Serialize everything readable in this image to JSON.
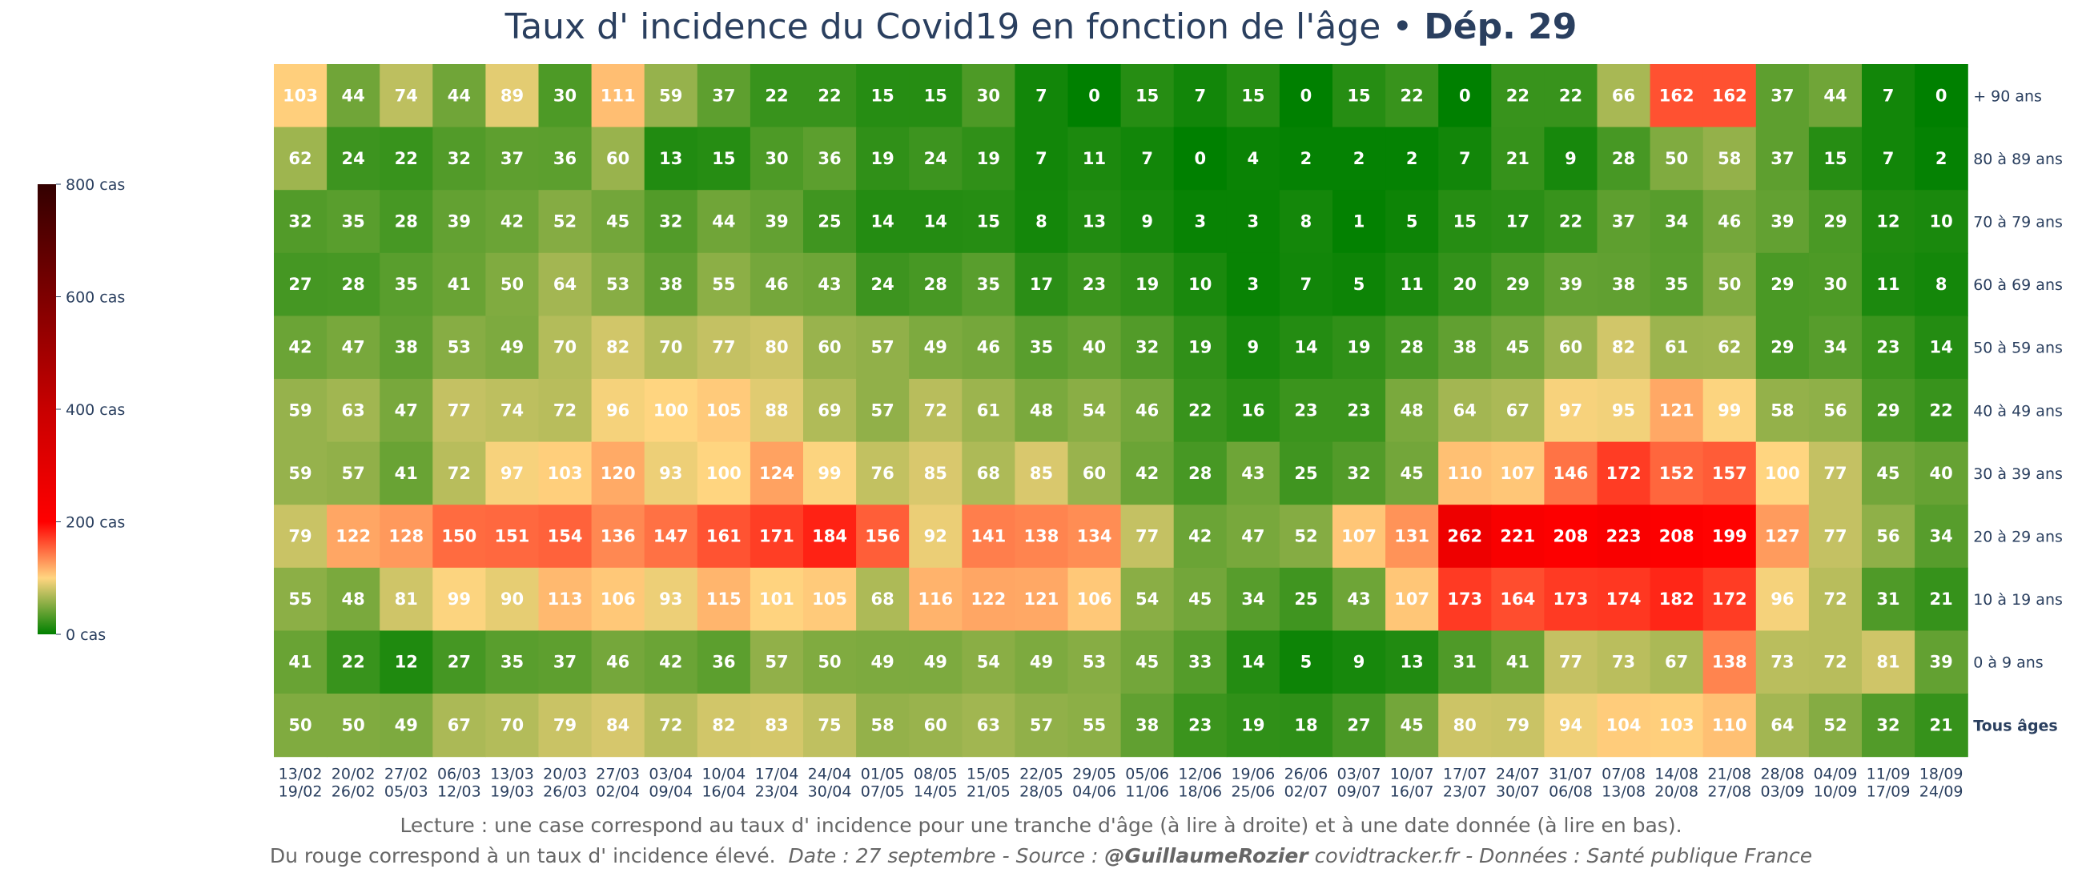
{
  "title": {
    "main": "Taux d' incidence du Covid19 en fonction de l'âge",
    "separator": "•",
    "dept": "Dép. 29"
  },
  "caption": {
    "line1": "Lecture : une case correspond au taux d' incidence pour une tranche d'âge (à lire à droite) et à une date donnée (à lire en bas).",
    "line2_plain": "Du rouge correspond à un taux d' incidence élevé.",
    "line2_date": "Date : 27 septembre - Source :",
    "line2_author": "@GuillaumeRozier",
    "line2_rest": "covidtracker.fr - Données : Santé publique France"
  },
  "colors": {
    "green": "#008000",
    "yellow": "#ffd580",
    "red": "#ff0000",
    "darkred": "#330000",
    "text": "#2a3f5f"
  },
  "chart_data": {
    "type": "heatmap",
    "title": "Taux d' incidence du Covid19 en fonction de l'âge • Dép. 29",
    "x_start": [
      "13/02",
      "20/02",
      "27/02",
      "06/03",
      "13/03",
      "20/03",
      "27/03",
      "03/04",
      "10/04",
      "17/04",
      "24/04",
      "01/05",
      "08/05",
      "15/05",
      "22/05",
      "29/05",
      "05/06",
      "12/06",
      "19/06",
      "26/06",
      "03/07",
      "10/07",
      "17/07",
      "24/07",
      "31/07",
      "07/08",
      "14/08",
      "21/08",
      "28/08",
      "04/09",
      "11/09",
      "18/09"
    ],
    "x_end": [
      "19/02",
      "26/02",
      "05/03",
      "12/03",
      "19/03",
      "26/03",
      "02/04",
      "09/04",
      "16/04",
      "23/04",
      "30/04",
      "07/05",
      "14/05",
      "21/05",
      "28/05",
      "04/06",
      "11/06",
      "18/06",
      "25/06",
      "02/07",
      "09/07",
      "16/07",
      "23/07",
      "30/07",
      "06/08",
      "13/08",
      "20/08",
      "27/08",
      "03/09",
      "10/09",
      "17/09",
      "24/09"
    ],
    "rows": [
      "+ 90 ans",
      "80 à 89 ans",
      "70 à 79 ans",
      "60 à 69 ans",
      "50 à 59 ans",
      "40 à 49 ans",
      "30 à 39 ans",
      "20 à 29 ans",
      "10 à 19 ans",
      "0 à 9 ans",
      "Tous âges"
    ],
    "values": [
      [
        103,
        44,
        74,
        44,
        89,
        30,
        111,
        59,
        37,
        22,
        22,
        15,
        15,
        30,
        7,
        0,
        15,
        7,
        15,
        0,
        15,
        22,
        0,
        22,
        22,
        66,
        162,
        162,
        37,
        44,
        7,
        0
      ],
      [
        62,
        24,
        22,
        32,
        37,
        36,
        60,
        13,
        15,
        30,
        36,
        19,
        24,
        19,
        7,
        11,
        7,
        0,
        4,
        2,
        2,
        2,
        7,
        21,
        9,
        28,
        50,
        58,
        37,
        15,
        7,
        2
      ],
      [
        32,
        35,
        28,
        39,
        42,
        52,
        45,
        32,
        44,
        39,
        25,
        14,
        14,
        15,
        8,
        13,
        9,
        3,
        3,
        8,
        1,
        5,
        15,
        17,
        22,
        37,
        34,
        46,
        39,
        29,
        12,
        10
      ],
      [
        27,
        28,
        35,
        41,
        50,
        64,
        53,
        38,
        55,
        46,
        43,
        24,
        28,
        35,
        17,
        23,
        19,
        10,
        3,
        7,
        5,
        11,
        20,
        29,
        39,
        38,
        35,
        50,
        29,
        30,
        11,
        8
      ],
      [
        42,
        47,
        38,
        53,
        49,
        70,
        82,
        70,
        77,
        80,
        60,
        57,
        49,
        46,
        35,
        40,
        32,
        19,
        9,
        14,
        19,
        28,
        38,
        45,
        60,
        82,
        61,
        62,
        29,
        34,
        23,
        14
      ],
      [
        59,
        63,
        47,
        77,
        74,
        72,
        96,
        100,
        105,
        88,
        69,
        57,
        72,
        61,
        48,
        54,
        46,
        22,
        16,
        23,
        23,
        48,
        64,
        67,
        97,
        95,
        121,
        99,
        58,
        56,
        29,
        22
      ],
      [
        59,
        57,
        41,
        72,
        97,
        103,
        120,
        93,
        100,
        124,
        99,
        76,
        85,
        68,
        85,
        60,
        42,
        28,
        43,
        25,
        32,
        45,
        110,
        107,
        146,
        172,
        152,
        157,
        100,
        77,
        45,
        40
      ],
      [
        79,
        122,
        128,
        150,
        151,
        154,
        136,
        147,
        161,
        171,
        184,
        156,
        92,
        141,
        138,
        134,
        77,
        42,
        47,
        52,
        107,
        131,
        262,
        221,
        208,
        223,
        208,
        199,
        127,
        77,
        56,
        34
      ],
      [
        55,
        48,
        81,
        99,
        90,
        113,
        106,
        93,
        115,
        101,
        105,
        68,
        116,
        122,
        121,
        106,
        54,
        45,
        34,
        25,
        43,
        107,
        173,
        164,
        173,
        174,
        182,
        172,
        96,
        72,
        31,
        21
      ],
      [
        41,
        22,
        12,
        27,
        35,
        37,
        46,
        42,
        36,
        57,
        50,
        49,
        49,
        54,
        49,
        53,
        45,
        33,
        14,
        5,
        9,
        13,
        31,
        41,
        77,
        73,
        67,
        138,
        73,
        72,
        81,
        39
      ],
      [
        50,
        50,
        49,
        67,
        70,
        79,
        84,
        72,
        82,
        83,
        75,
        58,
        60,
        63,
        57,
        55,
        38,
        23,
        19,
        18,
        27,
        45,
        80,
        79,
        94,
        104,
        103,
        110,
        64,
        52,
        32,
        21
      ]
    ],
    "colorbar": {
      "min": 0,
      "max": 800,
      "ticks": [
        "0 cas",
        "200 cas",
        "400 cas",
        "600 cas",
        "800 cas"
      ]
    },
    "bold_row": "Tous âges"
  }
}
